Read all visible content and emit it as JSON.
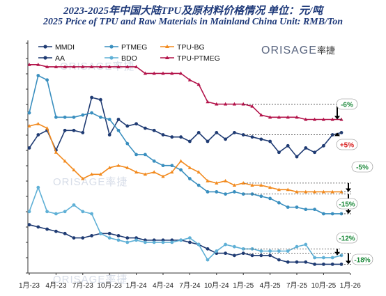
{
  "title": "2023-2025年中国大陆TPU及原材料价格情况 单位：元/吨",
  "subtitle": "2025 Price of TPU and Raw Materials in Mainland China Unit:  RMB/Ton",
  "logo": {
    "text": "ORISAGE",
    "cn": "率捷"
  },
  "colors": {
    "MMDI": "#1f3b73",
    "PTMEG": "#3a8fbf",
    "TPU-BG": "#f28a1e",
    "AA": "#1f3b73",
    "BDO": "#5fb0d6",
    "TPU-PTMEG": "#b3134a",
    "pct_neg": "#1e8a3c",
    "pct_pos": "#d81e1e"
  },
  "chart_data": {
    "type": "line",
    "x": [
      "1月-23",
      "4月-23",
      "7月-23",
      "10月-23",
      "1月-24",
      "4月-24",
      "7月-24",
      "10月-24",
      "1月-25",
      "4月-25",
      "7月-25",
      "10月-25",
      "1月-26"
    ],
    "xlim": [
      0,
      36
    ],
    "grid": false,
    "legend_position": "top-left",
    "series": [
      {
        "name": "MMDI",
        "marker": "circle",
        "x": [
          0,
          1,
          2,
          3,
          4,
          5,
          6,
          7,
          8,
          9,
          10,
          11,
          12,
          13,
          14,
          15,
          16,
          17,
          18,
          19,
          20,
          21,
          22,
          23,
          24,
          25,
          26,
          27,
          28,
          29,
          30,
          31,
          32,
          33,
          34,
          35
        ],
        "y": [
          57,
          63,
          65,
          56,
          65,
          65,
          64,
          80,
          79,
          63,
          70,
          67,
          68,
          66,
          65,
          63,
          62,
          62,
          60,
          64,
          60,
          64,
          61,
          64,
          63,
          62,
          61,
          60,
          55,
          58,
          53,
          57,
          55,
          58,
          63,
          64
        ]
      },
      {
        "name": "PTMEG",
        "marker": "circle",
        "x": [
          0,
          1,
          2,
          3,
          4,
          5,
          6,
          7,
          8,
          9,
          10,
          11,
          12,
          13,
          14,
          15,
          16,
          17,
          18,
          19,
          20,
          21,
          22,
          23,
          24,
          25,
          26,
          27,
          28,
          29,
          30,
          31,
          32,
          33,
          34,
          35
        ],
        "y": [
          73,
          90,
          88,
          71,
          71,
          71,
          72,
          73,
          71,
          70,
          65,
          59,
          54,
          54,
          51,
          49,
          49,
          47,
          43,
          40,
          37,
          37,
          36,
          37,
          36,
          36,
          35,
          34,
          32,
          30,
          30,
          29,
          29,
          27,
          27,
          27
        ]
      },
      {
        "name": "TPU-BG",
        "marker": "triangle",
        "x": [
          0,
          1,
          2,
          3,
          4,
          5,
          6,
          7,
          8,
          9,
          10,
          11,
          12,
          13,
          14,
          15,
          16,
          17,
          18,
          19,
          20,
          21,
          22,
          23,
          24,
          25,
          26,
          27,
          28,
          29,
          30,
          31,
          32,
          33,
          34,
          35
        ],
        "y": [
          67,
          68,
          66,
          55,
          51,
          47,
          43,
          45,
          45,
          48,
          49,
          48,
          46,
          45,
          46,
          44,
          46,
          51,
          48,
          46,
          42,
          41,
          42,
          40,
          41,
          40,
          40,
          39,
          38,
          38,
          37,
          37,
          37,
          37,
          37,
          37
        ]
      },
      {
        "name": "AA",
        "marker": "circle",
        "x": [
          0,
          1,
          2,
          3,
          4,
          5,
          6,
          7,
          8,
          9,
          10,
          11,
          12,
          13,
          14,
          15,
          16,
          17,
          18,
          19,
          20,
          21,
          22,
          23,
          24,
          25,
          26,
          27,
          28,
          29,
          30,
          31,
          32,
          33,
          34,
          35
        ],
        "y": [
          22,
          21,
          20,
          19,
          18,
          16,
          16,
          17,
          18,
          18,
          17,
          16,
          16,
          15,
          15,
          15,
          15,
          15,
          14,
          13,
          11,
          9,
          9,
          8,
          9,
          8,
          8,
          8,
          6,
          5,
          5,
          5,
          4,
          4,
          4,
          4
        ]
      },
      {
        "name": "BDO",
        "marker": "circle",
        "x": [
          0,
          1,
          2,
          3,
          4,
          5,
          6,
          7,
          8,
          9,
          10,
          11,
          12,
          13,
          14,
          15,
          16,
          17,
          18,
          19,
          20,
          21,
          22,
          23,
          24,
          25,
          26,
          27,
          28,
          29,
          30,
          31,
          32,
          33,
          34,
          35
        ],
        "y": [
          28,
          39,
          28,
          27,
          28,
          31,
          28,
          27,
          18,
          16,
          15,
          14,
          15,
          14,
          14,
          14,
          14,
          15,
          16,
          13,
          6,
          10,
          13,
          12,
          11,
          11,
          10,
          10,
          10,
          10,
          12,
          13,
          7,
          7,
          7,
          8
        ]
      },
      {
        "name": "TPU-PTMEG",
        "marker": "triangle",
        "x": [
          0,
          1,
          2,
          3,
          4,
          5,
          6,
          7,
          8,
          9,
          10,
          11,
          12,
          13,
          14,
          15,
          16,
          17,
          18,
          19,
          20,
          21,
          22,
          23,
          24,
          25,
          26,
          27,
          28,
          29,
          30,
          31,
          32,
          33,
          34,
          35
        ],
        "y": [
          95,
          95,
          94,
          94,
          94,
          94,
          94,
          94,
          94,
          94,
          94,
          94,
          94,
          91,
          91,
          91,
          91,
          91,
          88,
          86,
          78,
          77,
          77,
          77,
          77,
          76,
          72,
          71,
          71,
          71,
          71,
          70,
          70,
          70,
          70,
          70
        ]
      }
    ],
    "annotations": [
      {
        "text": "-6%",
        "sign": "neg",
        "series": "TPU-PTMEG"
      },
      {
        "text": "+5%",
        "sign": "pos",
        "series": "MMDI"
      },
      {
        "text": "-5%",
        "sign": "neg",
        "series": "TPU-BG"
      },
      {
        "text": "-15%",
        "sign": "neg",
        "series": "PTMEG"
      },
      {
        "text": "-12%",
        "sign": "neg",
        "series": "BDO"
      },
      {
        "text": "-18%",
        "sign": "neg",
        "series": "AA"
      }
    ]
  }
}
